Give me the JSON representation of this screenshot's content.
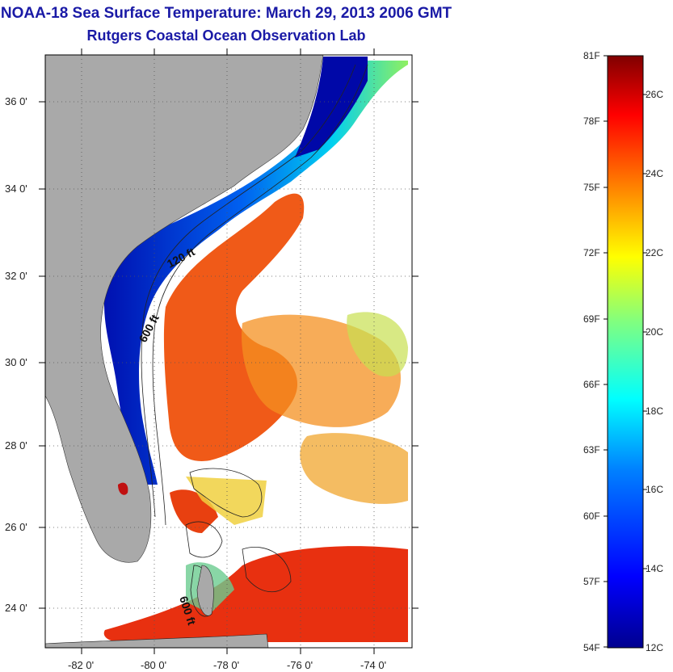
{
  "title": {
    "line1": "NOAA-18 Sea Surface Temperature:  March 29, 2013 2006 GMT",
    "line2": "Rutgers Coastal Ocean Observation Lab"
  },
  "map": {
    "lat_ticks": [
      "36 0'",
      "34 0'",
      "32 0'",
      "30 0'",
      "28 0'",
      "26 0'",
      "24 0'"
    ],
    "lon_ticks": [
      "-82 0'",
      "-80 0'",
      "-78 0'",
      "-76 0'",
      "-74 0'"
    ],
    "contour_labels": [
      "120 ft",
      "600 ft",
      "600 ft"
    ],
    "colors": {
      "land": "#a9a9a9",
      "cold": "#0018b8",
      "warm": "#e83810",
      "no_data": "#ffffff"
    }
  },
  "colorbar": {
    "fahrenheit": [
      "81F",
      "78F",
      "75F",
      "72F",
      "69F",
      "66F",
      "63F",
      "60F",
      "57F",
      "54F"
    ],
    "celsius": [
      "26C",
      "24C",
      "22C",
      "20C",
      "18C",
      "16C",
      "14C",
      "12C"
    ],
    "range_f": [
      54,
      81
    ],
    "range_c": [
      12,
      27.2
    ]
  }
}
